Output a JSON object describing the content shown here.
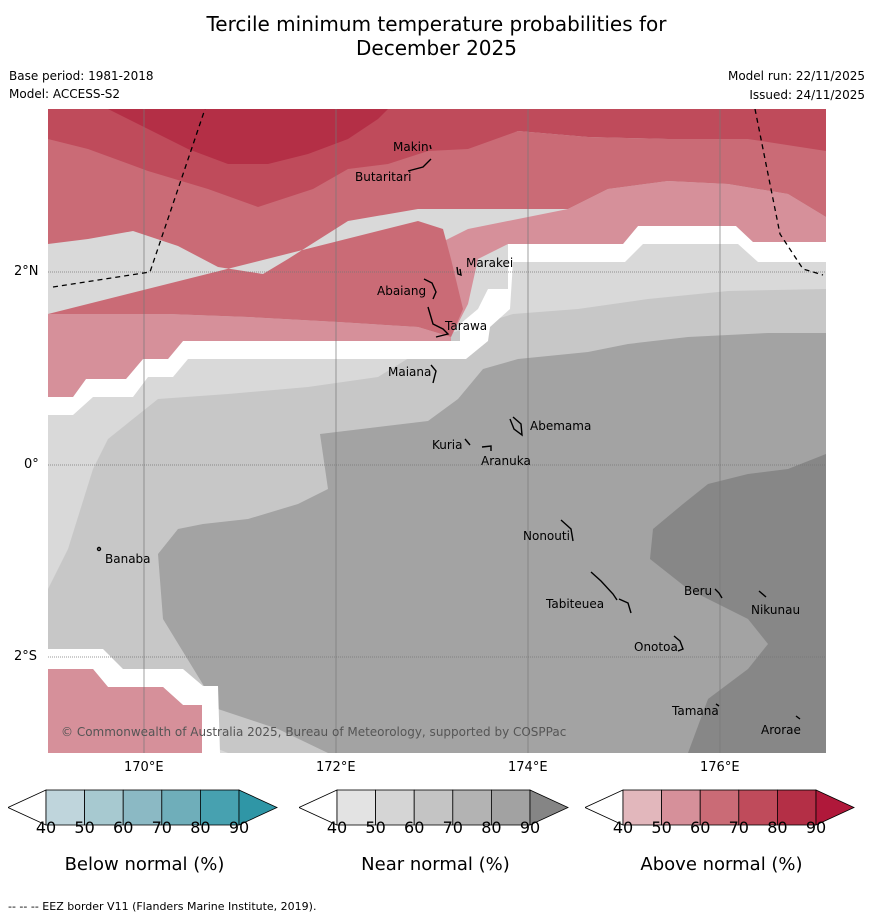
{
  "title": {
    "line1": "Tercile minimum temperature probabilities for",
    "line2": "December 2025"
  },
  "meta": {
    "base_period": "Base period: 1981-2018",
    "model": "Model: ACCESS-S2",
    "model_run": "Model run: 22/11/2025",
    "issued": "Issued: 24/11/2025"
  },
  "map": {
    "lat_labels": [
      "2°N",
      "0°",
      "2°S"
    ],
    "lon_labels": [
      "170°E",
      "172°E",
      "174°E",
      "176°E"
    ],
    "copyright": "© Commonwealth of Australia 2025, Bureau of Meteorology, supported by COSPPac",
    "places": [
      "Makin",
      "Butaritari",
      "Marakei",
      "Abaiang",
      "Tarawa",
      "Maiana",
      "Abemama",
      "Kuria",
      "Aranuka",
      "Nonouti",
      "Banaba",
      "Beru",
      "Tabiteuea",
      "Nikunau",
      "Onotoa",
      "Tamana",
      "Arorae"
    ]
  },
  "colorbars": [
    {
      "label": "Below normal (%)",
      "ticks": [
        "40",
        "50",
        "60",
        "70",
        "80",
        "90"
      ],
      "colors": [
        "#ffffff",
        "#bfd5dc",
        "#a7c9d0",
        "#8bb9c4",
        "#6faeba",
        "#47a1b0",
        "#2f96a6"
      ]
    },
    {
      "label": "Near normal (%)",
      "ticks": [
        "40",
        "50",
        "60",
        "70",
        "80",
        "90"
      ],
      "colors": [
        "#ffffff",
        "#e3e3e3",
        "#d5d5d5",
        "#c4c4c4",
        "#b3b3b3",
        "#a2a2a2",
        "#858585"
      ]
    },
    {
      "label": "Above normal (%)",
      "ticks": [
        "40",
        "50",
        "60",
        "70",
        "80",
        "90"
      ],
      "colors": [
        "#ffffff",
        "#e2b7bc",
        "#d6909a",
        "#ca6b76",
        "#bf4b5b",
        "#b42f46",
        "#b0183a"
      ]
    }
  ],
  "footer": "--  --  -- EEZ border V11 (Flanders Marine Institute, 2019).",
  "colors": {
    "above_60": "#d6909a",
    "above_70": "#ca6b76",
    "above_80": "#bf4b5b",
    "above_90": "#b42f46",
    "near_40": "#d9d9d9",
    "near_50": "#c7c7c7",
    "near_60": "#a3a3a3",
    "near_70": "#878787"
  }
}
